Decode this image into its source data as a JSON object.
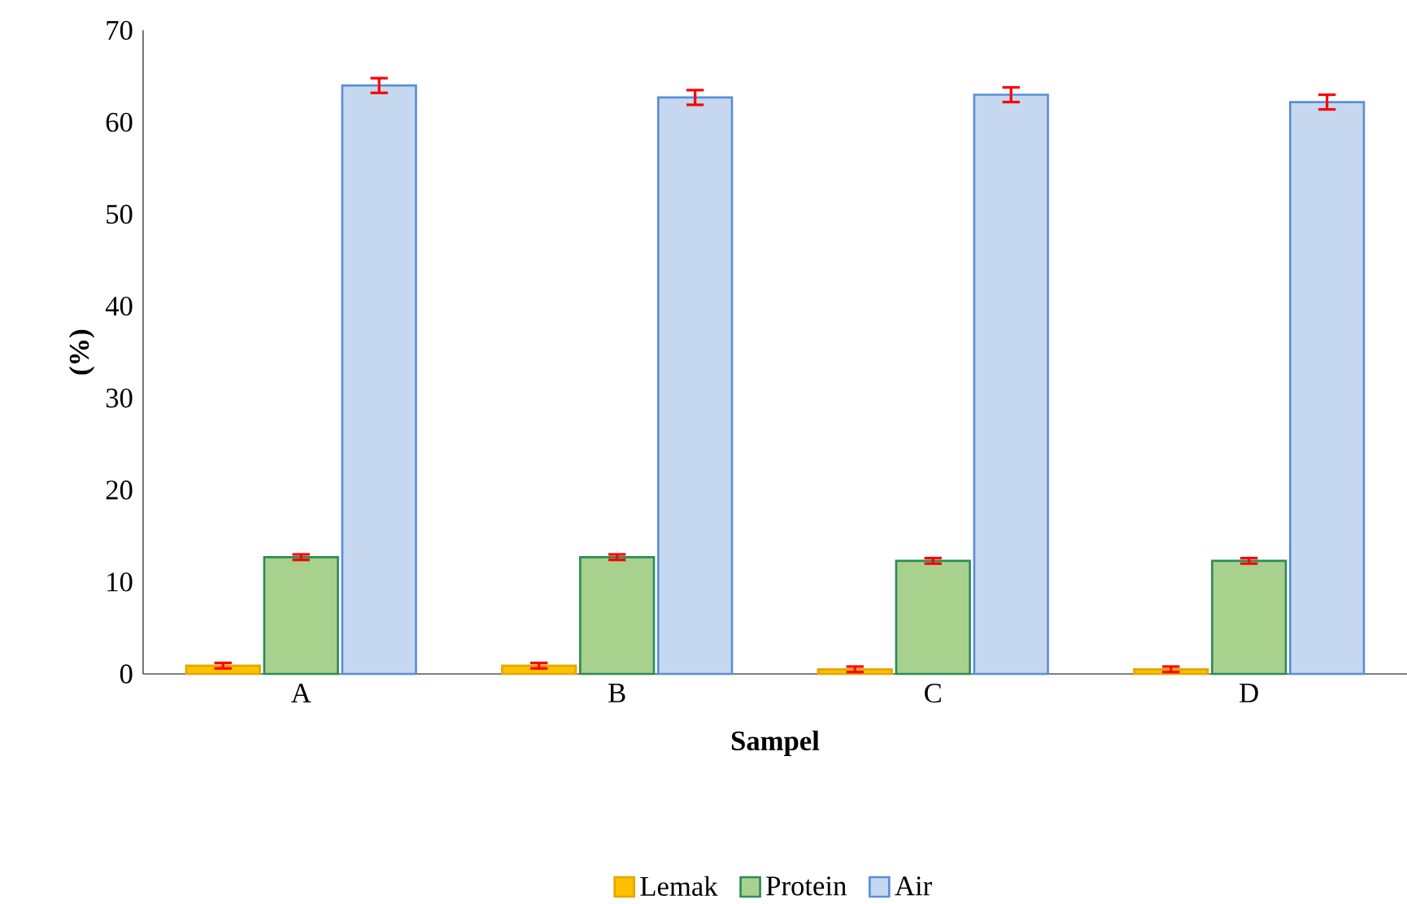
{
  "chart_data": {
    "type": "bar",
    "xlabel": "Sampel",
    "ylabel": "(%)",
    "categories": [
      "A",
      "B",
      "C",
      "D"
    ],
    "series": [
      {
        "name": "Lemak",
        "color": "#ffc000",
        "values": [
          0.9,
          0.9,
          0.5,
          0.5
        ],
        "errors": [
          0.3,
          0.3,
          0.3,
          0.3
        ]
      },
      {
        "name": "Protein",
        "color": "#a9d18e",
        "values": [
          12.7,
          12.7,
          12.3,
          12.3
        ],
        "errors": [
          0.3,
          0.3,
          0.3,
          0.3
        ]
      },
      {
        "name": "Air",
        "color": "#c5d8f0",
        "values": [
          64.0,
          62.7,
          63.0,
          62.2
        ],
        "errors": [
          0.8,
          0.8,
          0.8,
          0.8
        ]
      }
    ],
    "ylim": [
      0,
      70
    ],
    "yticks": [
      0,
      10,
      20,
      30,
      40,
      50,
      60,
      70
    ],
    "grid": false,
    "legend": "bottom"
  }
}
